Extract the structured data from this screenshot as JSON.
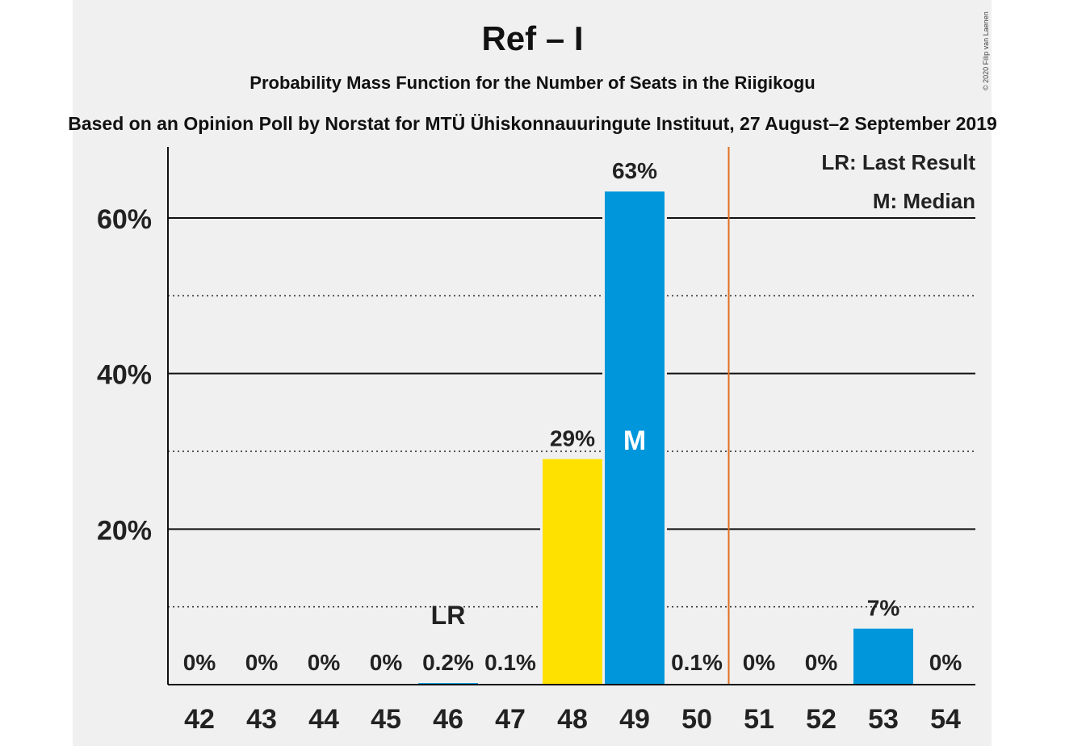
{
  "chart_data": {
    "type": "bar",
    "title": "Ref – I",
    "subtitle": "Probability Mass Function for the Number of Seats in the Riigikogu",
    "subtitle2": "Based on an Opinion Poll by Norstat for MTÜ Ühiskonnauuringute Instituut, 27 August–2 September 2019",
    "copyright": "© 2020 Filip van Laenen",
    "categories": [
      "42",
      "43",
      "44",
      "45",
      "46",
      "47",
      "48",
      "49",
      "50",
      "51",
      "52",
      "53",
      "54"
    ],
    "values": [
      0,
      0,
      0,
      0,
      0.2,
      0.1,
      29,
      63.4,
      0.1,
      0,
      0,
      7.2,
      0
    ],
    "value_labels": [
      "0%",
      "0%",
      "0%",
      "0%",
      "0.2%",
      "0.1%",
      "29%",
      "63%",
      "0.1%",
      "0%",
      "0%",
      "7%",
      "0%"
    ],
    "bar_colors": [
      "#0096db",
      "#0096db",
      "#0096db",
      "#0096db",
      "#0096db",
      "#0096db",
      "#ffe100",
      "#0096db",
      "#0096db",
      "#0096db",
      "#0096db",
      "#0096db",
      "#0096db"
    ],
    "ylim": [
      0,
      69
    ],
    "yticks": [
      20,
      40,
      60
    ],
    "ytick_labels": [
      "20%",
      "40%",
      "60%"
    ],
    "minor_gridlines": [
      10,
      30,
      50
    ],
    "last_result_seat": "46",
    "last_result_marker": "LR",
    "median_seat": "49",
    "median_marker": "M",
    "majority_line_after": "50",
    "majority_line_color": "#e07020",
    "legend": {
      "placement": "top-right",
      "entries": [
        "LR: Last Result",
        "M: Median"
      ]
    }
  }
}
